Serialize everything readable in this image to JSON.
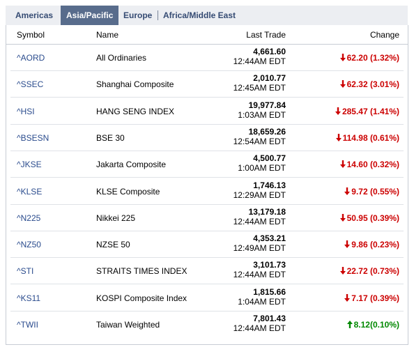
{
  "tabs": [
    {
      "label": "Americas",
      "active": false
    },
    {
      "label": "Asia/Pacific",
      "active": true
    },
    {
      "label": "Europe",
      "active": false
    },
    {
      "label": "Africa/Middle East",
      "active": false
    }
  ],
  "columns": {
    "symbol": "Symbol",
    "name": "Name",
    "last_trade": "Last Trade",
    "change": "Change"
  },
  "colors": {
    "down": "#cc0000",
    "up": "#008800",
    "link": "#2a4b8d",
    "active_tab": "#586c8c"
  },
  "rows": [
    {
      "symbol": "^AORD",
      "name": "All Ordinaries",
      "price": "4,661.60",
      "time": "12:44AM EDT",
      "change": "62.20 (1.32%)",
      "direction": "down"
    },
    {
      "symbol": "^SSEC",
      "name": "Shanghai Composite",
      "price": "2,010.77",
      "time": "12:45AM EDT",
      "change": "62.32 (3.01%)",
      "direction": "down"
    },
    {
      "symbol": "^HSI",
      "name": "HANG SENG INDEX",
      "price": "19,977.84",
      "time": "1:03AM EDT",
      "change": "285.47 (1.41%)",
      "direction": "down"
    },
    {
      "symbol": "^BSESN",
      "name": "BSE 30",
      "price": "18,659.26",
      "time": "12:54AM EDT",
      "change": "114.98 (0.61%)",
      "direction": "down"
    },
    {
      "symbol": "^JKSE",
      "name": "Jakarta Composite",
      "price": "4,500.77",
      "time": "1:00AM EDT",
      "change": "14.60 (0.32%)",
      "direction": "down"
    },
    {
      "symbol": "^KLSE",
      "name": "KLSE Composite",
      "price": "1,746.13",
      "time": "12:29AM EDT",
      "change": "9.72 (0.55%)",
      "direction": "down"
    },
    {
      "symbol": "^N225",
      "name": "Nikkei 225",
      "price": "13,179.18",
      "time": "12:44AM EDT",
      "change": "50.95 (0.39%)",
      "direction": "down"
    },
    {
      "symbol": "^NZ50",
      "name": "NZSE 50",
      "price": "4,353.21",
      "time": "12:49AM EDT",
      "change": "9.86 (0.23%)",
      "direction": "down"
    },
    {
      "symbol": "^STI",
      "name": "STRAITS TIMES INDEX",
      "price": "3,101.73",
      "time": "12:44AM EDT",
      "change": "22.72 (0.73%)",
      "direction": "down"
    },
    {
      "symbol": "^KS11",
      "name": "KOSPI Composite Index",
      "price": "1,815.66",
      "time": "1:04AM EDT",
      "change": "7.17 (0.39%)",
      "direction": "down"
    },
    {
      "symbol": "^TWII",
      "name": "Taiwan Weighted",
      "price": "7,801.43",
      "time": "12:44AM EDT",
      "change": "8.12(0.10%)",
      "direction": "up"
    }
  ]
}
